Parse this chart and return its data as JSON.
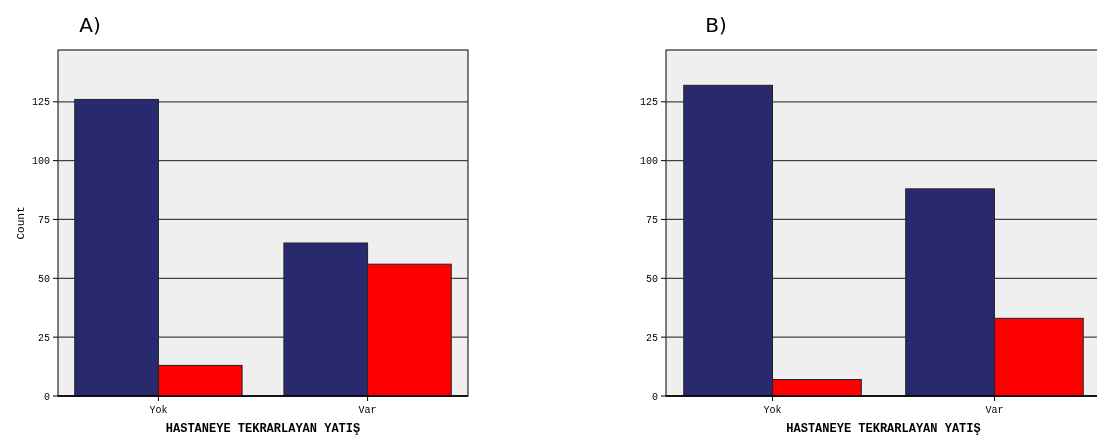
{
  "chart_data": [
    {
      "type": "bar",
      "title": "A)",
      "xlabel": "HASTANEYE TEKRARLAYAN YATIŞ",
      "ylabel": "Count",
      "categories": [
        "Yok",
        "Var"
      ],
      "series": [
        {
          "color": "#29296f",
          "values": [
            126,
            65
          ]
        },
        {
          "color": "#ff0000",
          "values": [
            13,
            56
          ]
        }
      ],
      "ylim": [
        0,
        147
      ],
      "yticks": [
        0,
        25,
        50,
        75,
        100,
        125
      ],
      "grid": "y"
    },
    {
      "type": "bar",
      "title": "B)",
      "xlabel": "HASTANEYE TEKRARLAYAN YATIŞ",
      "categories": [
        "Yok",
        "Var"
      ],
      "series": [
        {
          "color": "#29296f",
          "values": [
            132,
            88
          ]
        },
        {
          "color": "#ff0000",
          "values": [
            7,
            33
          ]
        }
      ],
      "ylim": [
        0,
        147
      ],
      "yticks": [
        0,
        25,
        50,
        75,
        100,
        125
      ],
      "grid": "y"
    }
  ]
}
